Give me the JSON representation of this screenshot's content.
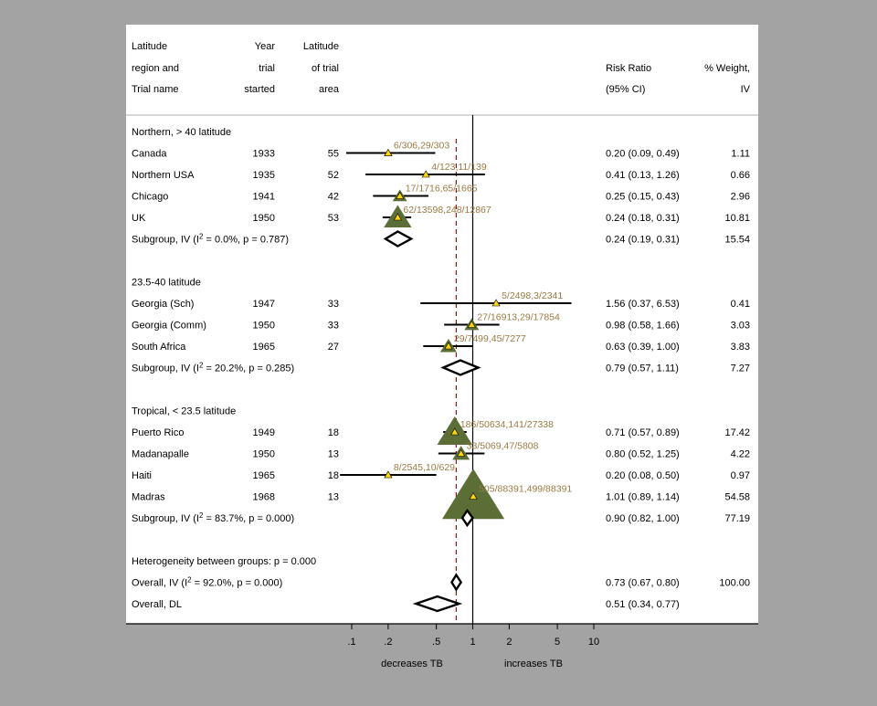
{
  "chart_data": {
    "type": "forest",
    "xscale": "log",
    "xticks": [
      {
        "value": 0.1,
        "label": ".1"
      },
      {
        "value": 0.2,
        "label": ".2"
      },
      {
        "value": 0.5,
        "label": ".5"
      },
      {
        "value": 1,
        "label": "1"
      },
      {
        "value": 2,
        "label": "2"
      },
      {
        "value": 5,
        "label": "5"
      },
      {
        "value": 10,
        "label": "10"
      }
    ],
    "xlim": [
      0.1,
      10
    ],
    "overall_line_value": 0.73,
    "xlabel_left": "decreases TB",
    "xlabel_right": "increases TB",
    "header": {
      "col1": [
        "Latitude",
        "region and",
        "Trial name"
      ],
      "col2": [
        "Year",
        "trial",
        "started"
      ],
      "col3": [
        "Latitude",
        "of trial",
        "area"
      ],
      "col4": [
        "Risk Ratio",
        "(95% CI)"
      ],
      "col5": [
        "% Weight,",
        "IV"
      ]
    },
    "rows": [
      {
        "kind": "group",
        "label": "Northern, > 40 latitude"
      },
      {
        "kind": "study",
        "name": "Canada",
        "year": "1933",
        "lat": "55",
        "rr": 0.2,
        "lo": 0.09,
        "hi": 0.49,
        "ci_text": "0.20 (0.09, 0.49)",
        "weight": "1.11",
        "counts": "6/306,29/303"
      },
      {
        "kind": "study",
        "name": "Northern USA",
        "year": "1935",
        "lat": "52",
        "rr": 0.41,
        "lo": 0.13,
        "hi": 1.26,
        "ci_text": "0.41 (0.13, 1.26)",
        "weight": "0.66",
        "counts": "4/123,11/139"
      },
      {
        "kind": "study",
        "name": "Chicago",
        "year": "1941",
        "lat": "42",
        "rr": 0.25,
        "lo": 0.15,
        "hi": 0.43,
        "ci_text": "0.25 (0.15, 0.43)",
        "weight": "2.96",
        "counts": "17/1716,65/1665"
      },
      {
        "kind": "study",
        "name": "UK",
        "year": "1950",
        "lat": "53",
        "rr": 0.24,
        "lo": 0.18,
        "hi": 0.31,
        "ci_text": "0.24 (0.18, 0.31)",
        "weight": "10.81",
        "counts": "62/13598,248/12867"
      },
      {
        "kind": "subtotal",
        "label": "Subgroup, IV (I",
        "sup": "2",
        "label_rest": " = 0.0%, p = 0.787)",
        "rr": 0.24,
        "lo": 0.19,
        "hi": 0.31,
        "ci_text": "0.24 (0.19, 0.31)",
        "weight": "15.54"
      },
      {
        "kind": "blank"
      },
      {
        "kind": "group",
        "label": "23.5-40 latitude"
      },
      {
        "kind": "study",
        "name": "Georgia (Sch)",
        "year": "1947",
        "lat": "33",
        "rr": 1.56,
        "lo": 0.37,
        "hi": 6.53,
        "ci_text": "1.56 (0.37, 6.53)",
        "weight": "0.41",
        "counts": "5/2498,3/2341"
      },
      {
        "kind": "study",
        "name": "Georgia (Comm)",
        "year": "1950",
        "lat": "33",
        "rr": 0.98,
        "lo": 0.58,
        "hi": 1.66,
        "ci_text": "0.98 (0.58, 1.66)",
        "weight": "3.03",
        "counts": "27/16913,29/17854"
      },
      {
        "kind": "study",
        "name": "South Africa",
        "year": "1965",
        "lat": "27",
        "rr": 0.63,
        "lo": 0.39,
        "hi": 1.0,
        "ci_text": "0.63 (0.39, 1.00)",
        "weight": "3.83",
        "counts": "29/7499,45/7277"
      },
      {
        "kind": "subtotal",
        "label": "Subgroup, IV (I",
        "sup": "2",
        "label_rest": " = 20.2%, p = 0.285)",
        "rr": 0.79,
        "lo": 0.57,
        "hi": 1.11,
        "ci_text": "0.79 (0.57, 1.11)",
        "weight": "7.27"
      },
      {
        "kind": "blank"
      },
      {
        "kind": "group",
        "label": "Tropical, < 23.5 latitude"
      },
      {
        "kind": "study",
        "name": "Puerto Rico",
        "year": "1949",
        "lat": "18",
        "rr": 0.71,
        "lo": 0.57,
        "hi": 0.89,
        "ci_text": "0.71 (0.57, 0.89)",
        "weight": "17.42",
        "counts": "186/50634,141/27338"
      },
      {
        "kind": "study",
        "name": "Madanapalle",
        "year": "1950",
        "lat": "13",
        "rr": 0.8,
        "lo": 0.52,
        "hi": 1.25,
        "ci_text": "0.80 (0.52, 1.25)",
        "weight": "4.22",
        "counts": "33/5069,47/5808"
      },
      {
        "kind": "study",
        "name": "Haiti",
        "year": "1965",
        "lat": "18",
        "rr": 0.2,
        "lo": 0.08,
        "hi": 0.5,
        "ci_text": "0.20 (0.08, 0.50)",
        "weight": "0.97",
        "counts": "8/2545,10/629"
      },
      {
        "kind": "study",
        "name": "Madras",
        "year": "1968",
        "lat": "13",
        "rr": 1.01,
        "lo": 0.89,
        "hi": 1.14,
        "ci_text": "1.01 (0.89, 1.14)",
        "weight": "54.58",
        "counts": "505/88391,499/88391"
      },
      {
        "kind": "subtotal",
        "label": "Subgroup, IV (I",
        "sup": "2",
        "label_rest": " = 83.7%, p = 0.000)",
        "rr": 0.9,
        "lo": 0.82,
        "hi": 1.0,
        "ci_text": "0.90 (0.82, 1.00)",
        "weight": "77.19"
      },
      {
        "kind": "blank"
      },
      {
        "kind": "note",
        "label": "Heterogeneity between groups: p = 0.000"
      },
      {
        "kind": "subtotal",
        "label": "Overall, IV (I",
        "sup": "2",
        "label_rest": " = 92.0%, p = 0.000)",
        "rr": 0.73,
        "lo": 0.67,
        "hi": 0.8,
        "ci_text": "0.73 (0.67, 0.80)",
        "weight": "100.00"
      },
      {
        "kind": "subtotal",
        "label": "Overall, DL",
        "rr": 0.51,
        "lo": 0.34,
        "hi": 0.77,
        "ci_text": "0.51 (0.34, 0.77)",
        "weight": ""
      }
    ],
    "colors": {
      "marker_fill": "#5a6e35",
      "point_fill": "#ffd700",
      "count_text": "#9a7b43",
      "overall_line": "#8b1a1a",
      "outer_background": "#a3a3a3",
      "panel_background": "#ffffff"
    }
  }
}
